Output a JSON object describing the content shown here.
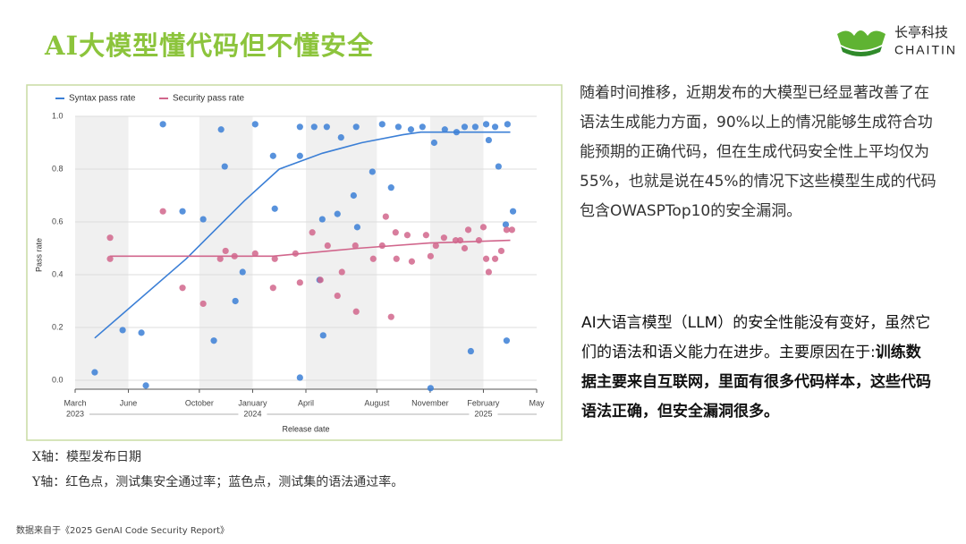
{
  "header": {
    "title": "AI大模型懂代码但不懂安全",
    "logo_cn": "长亭科技",
    "logo_en": "CHAITIN"
  },
  "chart_data": {
    "type": "scatter",
    "legend": "top-left",
    "xlabel": "Release date",
    "ylabel": "Pass rate",
    "xlim": [
      2023.167,
      2025.333
    ],
    "ylim": [
      -0.034,
      1.0
    ],
    "xticks": [
      {
        "value": 2023.167,
        "label": "March"
      },
      {
        "value": 2023.417,
        "label": "June"
      },
      {
        "value": 2023.75,
        "label": "October"
      },
      {
        "value": 2024.0,
        "label": "January"
      },
      {
        "value": 2024.25,
        "label": "April"
      },
      {
        "value": 2024.583,
        "label": "August"
      },
      {
        "value": 2024.833,
        "label": "November"
      },
      {
        "value": 2025.083,
        "label": "February"
      },
      {
        "value": 2025.333,
        "label": "May"
      }
    ],
    "x_year_labels": [
      {
        "value": 2023.167,
        "label": "2023"
      },
      {
        "value": 2024.0,
        "label": "2024"
      },
      {
        "value": 2025.083,
        "label": "2025"
      }
    ],
    "yticks": [
      {
        "value": 0,
        "label": "0.0"
      },
      0.2,
      0.4,
      0.6,
      0.8,
      {
        "value": 1,
        "label": "1.0"
      }
    ],
    "series": [
      {
        "name": "Syntax pass rate",
        "color": "#3b7fd6",
        "x": [
          2023.259,
          2023.39,
          2023.478,
          2023.499,
          2023.579,
          2023.671,
          2023.768,
          2023.818,
          2023.852,
          2023.869,
          2023.919,
          2023.953,
          2024.012,
          2024.096,
          2024.104,
          2024.222,
          2024.222,
          2024.222,
          2024.289,
          2024.314,
          2024.327,
          2024.331,
          2024.348,
          2024.398,
          2024.415,
          2024.474,
          2024.486,
          2024.491,
          2024.562,
          2024.608,
          2024.65,
          2024.684,
          2024.743,
          2024.797,
          2024.835,
          2024.852,
          2024.902,
          2024.957,
          2024.995,
          2025.024,
          2025.045,
          2025.096,
          2025.108,
          2025.138,
          2025.154,
          2025.188,
          2025.192,
          2025.196,
          2025.222
        ],
        "values": [
          0.03,
          0.19,
          0.18,
          -0.02,
          0.97,
          0.64,
          0.61,
          0.15,
          0.95,
          0.81,
          0.3,
          0.41,
          0.97,
          0.85,
          0.65,
          0.96,
          0.01,
          0.85,
          0.96,
          0.38,
          0.61,
          0.17,
          0.96,
          0.63,
          0.92,
          0.7,
          0.96,
          0.58,
          0.79,
          0.97,
          0.73,
          0.96,
          0.95,
          0.96,
          -0.03,
          0.9,
          0.95,
          0.94,
          0.96,
          0.11,
          0.96,
          0.97,
          0.91,
          0.96,
          0.81,
          0.59,
          0.15,
          0.97,
          0.64
        ],
        "trend_x": [
          2023.259,
          2023.688,
          2023.961,
          2024.125,
          2024.327,
          2024.512,
          2024.705,
          2024.789,
          2025.209
        ],
        "trend_values": [
          0.16,
          0.46,
          0.68,
          0.8,
          0.86,
          0.9,
          0.93,
          0.94,
          0.94
        ]
      },
      {
        "name": "Security pass rate",
        "color": "#d1668c",
        "x": [
          2023.331,
          2023.331,
          2023.579,
          2023.671,
          2023.768,
          2023.848,
          2023.873,
          2023.915,
          2024.012,
          2024.096,
          2024.104,
          2024.201,
          2024.222,
          2024.28,
          2024.318,
          2024.352,
          2024.398,
          2024.419,
          2024.482,
          2024.486,
          2024.566,
          2024.608,
          2024.625,
          2024.65,
          2024.671,
          2024.675,
          2024.726,
          2024.747,
          2024.814,
          2024.835,
          2024.86,
          2024.898,
          2024.953,
          2024.974,
          2024.995,
          2025.012,
          2025.062,
          2025.083,
          2025.096,
          2025.108,
          2025.138,
          2025.167,
          2025.192,
          2025.217
        ],
        "values": [
          0.54,
          0.46,
          0.64,
          0.35,
          0.29,
          0.46,
          0.49,
          0.47,
          0.48,
          0.35,
          0.46,
          0.48,
          0.37,
          0.56,
          0.38,
          0.51,
          0.32,
          0.41,
          0.51,
          0.26,
          0.46,
          0.51,
          0.62,
          0.24,
          0.56,
          0.46,
          0.55,
          0.45,
          0.55,
          0.47,
          0.51,
          0.54,
          0.53,
          0.53,
          0.5,
          0.57,
          0.53,
          0.58,
          0.46,
          0.41,
          0.46,
          0.49,
          0.57,
          0.57
        ],
        "trend_x": [
          2023.331,
          2024.096,
          2024.494,
          2024.831,
          2025.209
        ],
        "trend_values": [
          0.47,
          0.47,
          0.5,
          0.52,
          0.53
        ]
      }
    ]
  },
  "text": {
    "paragraph1": "随着时间推移，近期发布的大模型已经显著改善了在语法生成能力方面，90%以上的情况能够生成符合功能预期的正确代码，但在生成代码安全性上平均仅为55%，也就是说在45%的情况下这些模型生成的代码包含OWASPTop10的安全漏洞。",
    "paragraph2": "AI大语言模型（LLM）的安全性能没有变好，虽然它们的语法和语义能力在进步。主要原因在于:",
    "paragraph2_bold": "训练数据主要来自互联网，里面有很多代码样本，这些代码语法正确，但安全漏洞很多。",
    "note_x": "X轴：模型发布日期",
    "note_y": "Y轴：红色点，测试集安全通过率；蓝色点，测试集的语法通过率。",
    "source": "数据来自于《2025 GenAI Code Security Report》"
  }
}
